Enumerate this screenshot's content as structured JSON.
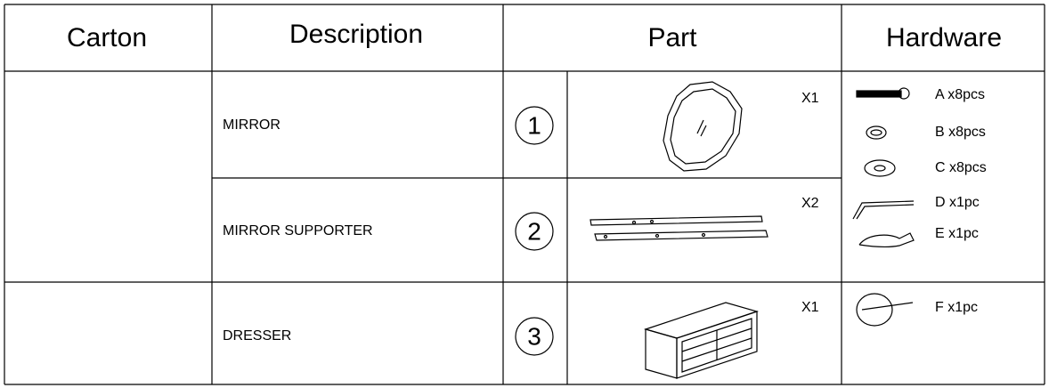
{
  "header": {
    "columns": [
      "Carton",
      "Description",
      "Part",
      "Hardware"
    ]
  },
  "rows": [
    {
      "description": "MIRROR",
      "part_number": "1",
      "quantity": "X1"
    },
    {
      "description": "MIRROR SUPPORTER",
      "part_number": "2",
      "quantity": "X2"
    },
    {
      "description": "DRESSER",
      "part_number": "3",
      "quantity": "X1"
    }
  ],
  "hardware": [
    [
      "A x8pcs",
      "B x8pcs",
      "C x8pcs",
      "D x1pc",
      "E x1pc"
    ],
    [
      "F x1pc"
    ]
  ]
}
